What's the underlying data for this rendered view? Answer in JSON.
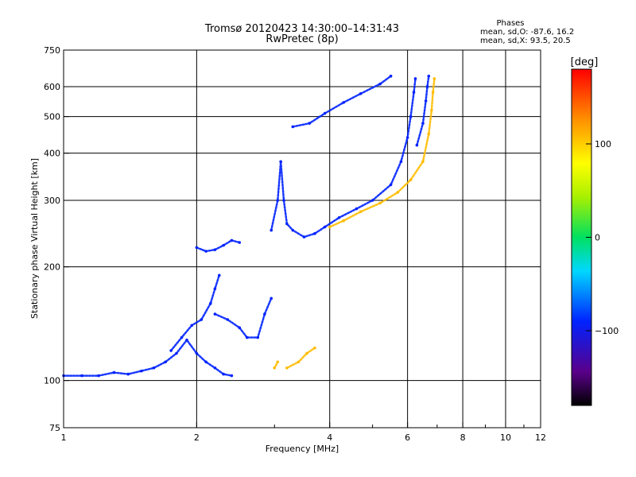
{
  "chart_data": {
    "type": "scatter",
    "title": "Tromsø 20120423 14:30:00–14:31:43",
    "subtitle": "RwPretec (8p)",
    "phases": {
      "heading": "Phases",
      "line1": "mean, sd,O: -87.6, 16.2",
      "line2": "mean, sd,X:  93.5, 20.5"
    },
    "xlabel": "Frequency [MHz]",
    "ylabel": "Stationary phase Virtual Height [km]",
    "xscale": "log",
    "yscale": "log",
    "xlim": [
      1,
      12
    ],
    "ylim": [
      75,
      750
    ],
    "xticks": [
      1,
      2,
      4,
      6,
      8,
      10,
      12
    ],
    "xtick_labels": [
      "1",
      "2",
      "4",
      "6",
      "8",
      "10",
      "12"
    ],
    "xgrid": [
      2,
      4,
      6,
      8,
      10,
      12
    ],
    "yticks": [
      75,
      100,
      200,
      300,
      400,
      500,
      600,
      750
    ],
    "ytick_labels": [
      "75",
      "100",
      "200",
      "300",
      "400",
      "500",
      "600",
      "750"
    ],
    "ygrid": [
      100,
      200,
      300,
      400,
      500,
      600
    ],
    "grid": true,
    "colorbar": {
      "label": "[deg]",
      "range": [
        -180,
        180
      ],
      "ticks": [
        100,
        0,
        -100
      ],
      "tick_labels": [
        "100",
        "0",
        "−100"
      ],
      "placement": "right"
    },
    "traces": [
      {
        "name": "",
        "phase": -100,
        "points": [
          [
            1.0,
            103
          ],
          [
            1.1,
            103
          ],
          [
            1.2,
            103
          ],
          [
            1.3,
            105
          ],
          [
            1.4,
            104
          ],
          [
            1.5,
            106
          ],
          [
            1.6,
            108
          ],
          [
            1.7,
            112
          ],
          [
            1.8,
            118
          ],
          [
            1.9,
            128
          ],
          [
            2.0,
            118
          ],
          [
            2.1,
            112
          ],
          [
            2.2,
            108
          ],
          [
            2.3,
            104
          ],
          [
            2.4,
            103
          ]
        ]
      },
      {
        "name": "",
        "phase": -100,
        "points": [
          [
            1.75,
            120
          ],
          [
            1.85,
            130
          ],
          [
            1.95,
            140
          ],
          [
            2.05,
            145
          ],
          [
            2.15,
            160
          ],
          [
            2.2,
            175
          ],
          [
            2.25,
            190
          ]
        ]
      },
      {
        "name": "",
        "phase": -100,
        "points": [
          [
            2.0,
            225
          ],
          [
            2.1,
            220
          ],
          [
            2.2,
            222
          ],
          [
            2.3,
            228
          ],
          [
            2.4,
            235
          ],
          [
            2.5,
            232
          ]
        ]
      },
      {
        "name": "",
        "phase": -100,
        "points": [
          [
            2.2,
            150
          ],
          [
            2.35,
            145
          ],
          [
            2.5,
            138
          ],
          [
            2.6,
            130
          ],
          [
            2.75,
            130
          ],
          [
            2.85,
            150
          ],
          [
            2.95,
            165
          ]
        ]
      },
      {
        "name": "",
        "phase": -100,
        "points": [
          [
            2.95,
            250
          ],
          [
            3.05,
            300
          ],
          [
            3.1,
            380
          ],
          [
            3.15,
            300
          ],
          [
            3.2,
            260
          ],
          [
            3.3,
            250
          ],
          [
            3.5,
            240
          ],
          [
            3.7,
            245
          ],
          [
            3.9,
            255
          ],
          [
            4.2,
            270
          ],
          [
            4.6,
            285
          ],
          [
            5.0,
            300
          ],
          [
            5.5,
            330
          ],
          [
            5.8,
            380
          ],
          [
            6.0,
            440
          ],
          [
            6.1,
            500
          ],
          [
            6.2,
            580
          ],
          [
            6.25,
            630
          ]
        ]
      },
      {
        "name": "",
        "phase": -100,
        "points": [
          [
            3.3,
            470
          ],
          [
            3.6,
            480
          ],
          [
            3.9,
            510
          ],
          [
            4.3,
            545
          ],
          [
            4.7,
            575
          ],
          [
            5.2,
            610
          ],
          [
            5.5,
            640
          ]
        ]
      },
      {
        "name": "",
        "phase": -100,
        "points": [
          [
            6.3,
            420
          ],
          [
            6.5,
            480
          ],
          [
            6.6,
            550
          ],
          [
            6.65,
            600
          ],
          [
            6.7,
            640
          ]
        ]
      },
      {
        "name": "",
        "phase": 110,
        "points": [
          [
            4.0,
            255
          ],
          [
            4.3,
            265
          ],
          [
            4.7,
            280
          ],
          [
            5.2,
            295
          ],
          [
            5.7,
            315
          ],
          [
            6.1,
            340
          ],
          [
            6.5,
            380
          ],
          [
            6.7,
            450
          ],
          [
            6.8,
            520
          ],
          [
            6.85,
            580
          ],
          [
            6.9,
            630
          ]
        ]
      },
      {
        "name": "",
        "phase": 110,
        "points": [
          [
            3.2,
            108
          ],
          [
            3.4,
            112
          ],
          [
            3.55,
            118
          ],
          [
            3.7,
            122
          ]
        ]
      },
      {
        "name": "",
        "phase": 110,
        "points": [
          [
            3.0,
            108
          ],
          [
            3.05,
            112
          ]
        ]
      }
    ]
  }
}
